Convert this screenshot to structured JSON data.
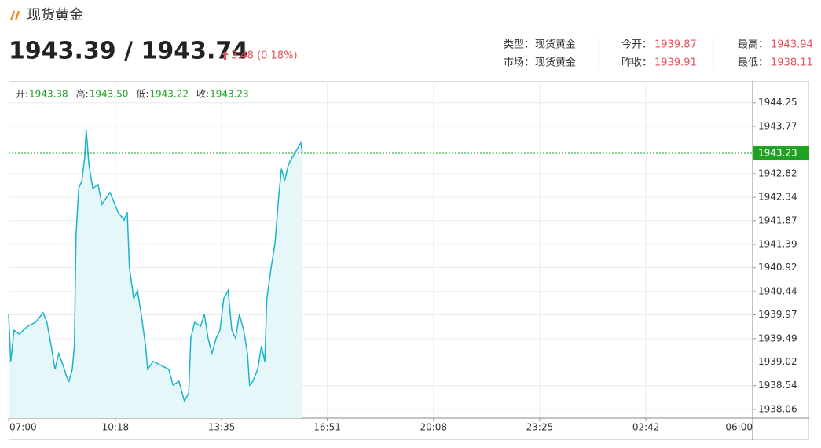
{
  "header": {
    "title": "现货黄金",
    "price": "1943.39 / 1943.74",
    "change": "3.48 (0.18%)"
  },
  "info": [
    [
      {
        "label": "类型：",
        "value": "现货黄金"
      },
      {
        "label": "今开：",
        "value": "1939.87"
      },
      {
        "label": "最高：",
        "value": "1943.94"
      }
    ],
    [
      {
        "label": "市场：",
        "value": "现货黄金"
      },
      {
        "label": "昨收：",
        "value": "1939.91"
      },
      {
        "label": "最低：",
        "value": "1938.11"
      }
    ]
  ],
  "ohlc": [
    {
      "label": "开:",
      "value": "1943.38"
    },
    {
      "label": "高:",
      "value": "1943.50"
    },
    {
      "label": "低:",
      "value": "1943.22"
    },
    {
      "label": "收:",
      "value": "1943.23"
    }
  ],
  "chart_data": {
    "type": "area",
    "color": "#1ab3cf",
    "fill_color": "#e6f7fa",
    "grid": true,
    "x": [
      0,
      4,
      10,
      20,
      35,
      50,
      64,
      71,
      79,
      86,
      93,
      101,
      108,
      112,
      118,
      122,
      125,
      130,
      136,
      141,
      144,
      149,
      156,
      166,
      173,
      188,
      203,
      214,
      220,
      224,
      232,
      239,
      246,
      254,
      258,
      268,
      283,
      297,
      305,
      316,
      326,
      334,
      338,
      345,
      356,
      363,
      370,
      377,
      385,
      392,
      399,
      407,
      414,
      421,
      428,
      436,
      443,
      447,
      453,
      462,
      469,
      475,
      479,
      487,
      494,
      501,
      506,
      512,
      519,
      526,
      535,
      542,
      545
    ],
    "values": [
      1939.98,
      1939.03,
      1939.66,
      1939.58,
      1939.74,
      1939.82,
      1940.01,
      1939.82,
      1939.34,
      1938.87,
      1939.19,
      1938.95,
      1938.71,
      1938.63,
      1938.87,
      1939.34,
      1941.57,
      1942.52,
      1942.68,
      1943.15,
      1943.71,
      1943.0,
      1942.52,
      1942.6,
      1942.2,
      1942.44,
      1942.04,
      1941.88,
      1942.04,
      1940.93,
      1940.3,
      1940.46,
      1939.98,
      1939.34,
      1938.87,
      1939.03,
      1938.95,
      1938.87,
      1938.55,
      1938.63,
      1938.23,
      1938.39,
      1939.5,
      1939.82,
      1939.74,
      1939.98,
      1939.5,
      1939.19,
      1939.5,
      1939.66,
      1940.3,
      1940.46,
      1939.66,
      1939.5,
      1939.98,
      1939.66,
      1939.19,
      1938.55,
      1938.63,
      1938.87,
      1939.34,
      1939.03,
      1940.3,
      1940.93,
      1941.41,
      1942.36,
      1942.92,
      1942.68,
      1943.0,
      1943.15,
      1943.31,
      1943.44,
      1943.23
    ],
    "xlim": [
      0,
      1380
    ],
    "xticks": [
      {
        "value": 0,
        "label": "07:00"
      },
      {
        "value": 198,
        "label": "10:18"
      },
      {
        "value": 395,
        "label": "13:35"
      },
      {
        "value": 591,
        "label": "16:51"
      },
      {
        "value": 788,
        "label": "20:08"
      },
      {
        "value": 985,
        "label": "23:25"
      },
      {
        "value": 1182,
        "label": "02:42"
      },
      {
        "value": 1380,
        "label": "06:00"
      }
    ],
    "ylim": [
      1937.885,
      1944.69
    ],
    "yticks": [
      1944.25,
      1943.77,
      1942.82,
      1942.34,
      1941.87,
      1941.39,
      1940.92,
      1940.44,
      1939.97,
      1939.49,
      1939.02,
      1938.54,
      1938.06
    ],
    "last_price": {
      "value": 1943.23,
      "label": "1943.23",
      "color": "#1fa21f"
    }
  }
}
